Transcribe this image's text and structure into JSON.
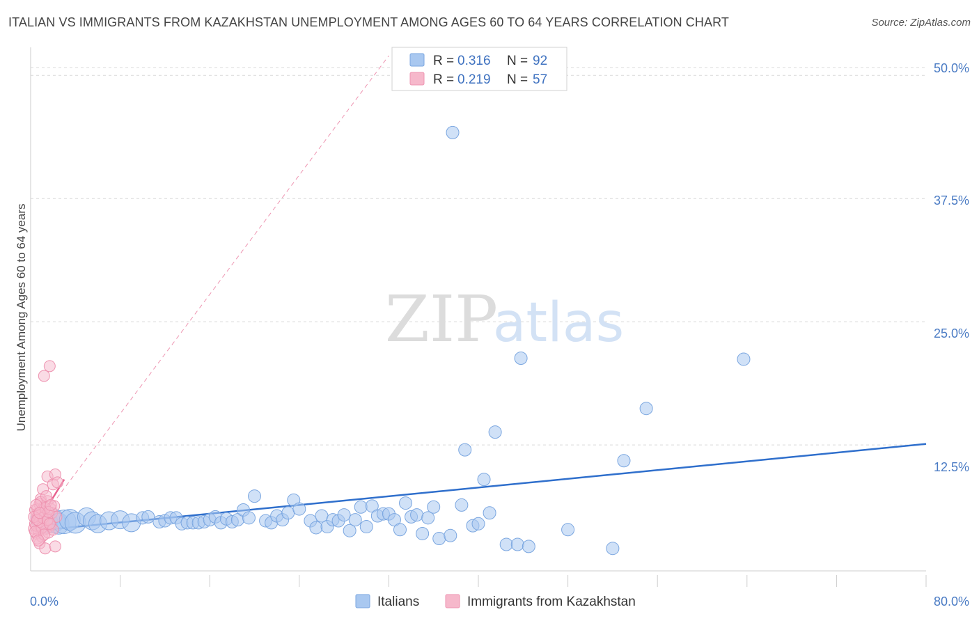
{
  "title": "ITALIAN VS IMMIGRANTS FROM KAZAKHSTAN UNEMPLOYMENT AMONG AGES 60 TO 64 YEARS CORRELATION CHART",
  "source": "Source: ZipAtlas.com",
  "watermark": {
    "zip": "ZIP",
    "atlas": "atlas"
  },
  "colors": {
    "blue_fill": "#a9c8f0",
    "blue_stroke": "#7aa6e0",
    "blue_line": "#2f6fcc",
    "pink_fill": "#f6b8cb",
    "pink_stroke": "#ee93b0",
    "pink_line": "#e8628f",
    "grid": "#d9d9d9",
    "tick_label": "#4a7bc4"
  },
  "legend": {
    "row1": {
      "r_label": "R = ",
      "r_value": "0.316",
      "n_label": "N = ",
      "n_value": "92"
    },
    "row2": {
      "r_label": "R = ",
      "r_value": "0.219",
      "n_label": "N = ",
      "n_value": "57"
    }
  },
  "chart_data": {
    "type": "scatter",
    "title": "ITALIAN VS IMMIGRANTS FROM KAZAKHSTAN UNEMPLOYMENT AMONG AGES 60 TO 64 YEARS CORRELATION CHART",
    "xlabel": "",
    "ylabel": "Unemployment Among Ages 60 to 64 years",
    "xlim": [
      0,
      80
    ],
    "ylim": [
      0,
      52
    ],
    "x_tick_labels": [
      "0.0%",
      "80.0%"
    ],
    "y_ticks": [
      12.5,
      25.0,
      37.5,
      50.0
    ],
    "y_tick_labels": [
      "12.5%",
      "25.0%",
      "37.5%",
      "50.0%"
    ],
    "grid": true,
    "legend_position": "top-center",
    "series": [
      {
        "name": "Italians",
        "color": "#a9c8f0",
        "trend": {
          "x": [
            0.5,
            80
          ],
          "y": [
            3.8,
            12.6
          ]
        },
        "points": [
          {
            "x": 1.0,
            "y": 4.9,
            "s": 3
          },
          {
            "x": 1.5,
            "y": 4.6,
            "s": 3
          },
          {
            "x": 2.0,
            "y": 4.8,
            "s": 4
          },
          {
            "x": 2.5,
            "y": 4.5,
            "s": 3
          },
          {
            "x": 3.0,
            "y": 4.7,
            "s": 4
          },
          {
            "x": 3.5,
            "y": 4.9,
            "s": 3
          },
          {
            "x": 4.0,
            "y": 4.6,
            "s": 3
          },
          {
            "x": 5.0,
            "y": 5.2,
            "s": 2
          },
          {
            "x": 5.5,
            "y": 4.8,
            "s": 2
          },
          {
            "x": 6.0,
            "y": 4.5,
            "s": 2
          },
          {
            "x": 7.0,
            "y": 4.8,
            "s": 2
          },
          {
            "x": 8.0,
            "y": 4.9,
            "s": 2
          },
          {
            "x": 9.0,
            "y": 4.6,
            "s": 2
          },
          {
            "x": 10.0,
            "y": 5.1,
            "s": 1
          },
          {
            "x": 10.5,
            "y": 5.2,
            "s": 1
          },
          {
            "x": 11.5,
            "y": 4.7,
            "s": 1
          },
          {
            "x": 12.0,
            "y": 4.8,
            "s": 1
          },
          {
            "x": 12.5,
            "y": 5.1,
            "s": 1
          },
          {
            "x": 13.0,
            "y": 5.1,
            "s": 1
          },
          {
            "x": 13.5,
            "y": 4.5,
            "s": 1
          },
          {
            "x": 14.0,
            "y": 4.6,
            "s": 1
          },
          {
            "x": 14.5,
            "y": 4.6,
            "s": 1
          },
          {
            "x": 15.0,
            "y": 4.6,
            "s": 1
          },
          {
            "x": 15.5,
            "y": 4.7,
            "s": 1
          },
          {
            "x": 16.0,
            "y": 4.9,
            "s": 1
          },
          {
            "x": 16.5,
            "y": 5.2,
            "s": 1
          },
          {
            "x": 17.0,
            "y": 4.6,
            "s": 1
          },
          {
            "x": 17.5,
            "y": 5.0,
            "s": 1
          },
          {
            "x": 18.0,
            "y": 4.7,
            "s": 1
          },
          {
            "x": 18.5,
            "y": 4.9,
            "s": 1
          },
          {
            "x": 19.0,
            "y": 5.9,
            "s": 1
          },
          {
            "x": 19.5,
            "y": 5.1,
            "s": 1
          },
          {
            "x": 20.0,
            "y": 7.3,
            "s": 1
          },
          {
            "x": 21.0,
            "y": 4.8,
            "s": 1
          },
          {
            "x": 21.5,
            "y": 4.6,
            "s": 1
          },
          {
            "x": 22.0,
            "y": 5.3,
            "s": 1
          },
          {
            "x": 22.5,
            "y": 4.9,
            "s": 1
          },
          {
            "x": 23.0,
            "y": 5.6,
            "s": 1
          },
          {
            "x": 23.5,
            "y": 6.9,
            "s": 1
          },
          {
            "x": 24.0,
            "y": 6.0,
            "s": 1
          },
          {
            "x": 25.0,
            "y": 4.8,
            "s": 1
          },
          {
            "x": 25.5,
            "y": 4.1,
            "s": 1
          },
          {
            "x": 26.0,
            "y": 5.3,
            "s": 1
          },
          {
            "x": 26.5,
            "y": 4.2,
            "s": 1
          },
          {
            "x": 27.0,
            "y": 4.9,
            "s": 1
          },
          {
            "x": 27.5,
            "y": 4.8,
            "s": 1
          },
          {
            "x": 28.0,
            "y": 5.4,
            "s": 1
          },
          {
            "x": 28.5,
            "y": 3.8,
            "s": 1
          },
          {
            "x": 29.0,
            "y": 4.9,
            "s": 1
          },
          {
            "x": 29.5,
            "y": 6.2,
            "s": 1
          },
          {
            "x": 30.0,
            "y": 4.2,
            "s": 1
          },
          {
            "x": 30.5,
            "y": 6.3,
            "s": 1
          },
          {
            "x": 31.0,
            "y": 5.3,
            "s": 1
          },
          {
            "x": 31.5,
            "y": 5.5,
            "s": 1
          },
          {
            "x": 32.0,
            "y": 5.5,
            "s": 1
          },
          {
            "x": 32.5,
            "y": 4.9,
            "s": 1
          },
          {
            "x": 33.0,
            "y": 3.9,
            "s": 1
          },
          {
            "x": 33.5,
            "y": 6.6,
            "s": 1
          },
          {
            "x": 34.0,
            "y": 5.2,
            "s": 1
          },
          {
            "x": 34.5,
            "y": 5.4,
            "s": 1
          },
          {
            "x": 35.0,
            "y": 3.5,
            "s": 1
          },
          {
            "x": 35.5,
            "y": 5.1,
            "s": 1
          },
          {
            "x": 36.0,
            "y": 6.2,
            "s": 1
          },
          {
            "x": 36.5,
            "y": 3.0,
            "s": 1
          },
          {
            "x": 37.5,
            "y": 3.3,
            "s": 1
          },
          {
            "x": 37.7,
            "y": 44.2,
            "s": 1
          },
          {
            "x": 38.5,
            "y": 6.4,
            "s": 1
          },
          {
            "x": 38.8,
            "y": 12.0,
            "s": 1
          },
          {
            "x": 39.5,
            "y": 4.3,
            "s": 1
          },
          {
            "x": 40.0,
            "y": 4.5,
            "s": 1
          },
          {
            "x": 40.5,
            "y": 9.0,
            "s": 1
          },
          {
            "x": 41.0,
            "y": 5.6,
            "s": 1
          },
          {
            "x": 41.5,
            "y": 13.8,
            "s": 1
          },
          {
            "x": 42.5,
            "y": 2.4,
            "s": 1
          },
          {
            "x": 43.5,
            "y": 2.4,
            "s": 1
          },
          {
            "x": 43.8,
            "y": 21.3,
            "s": 1
          },
          {
            "x": 44.5,
            "y": 2.2,
            "s": 1
          },
          {
            "x": 48.0,
            "y": 3.9,
            "s": 1
          },
          {
            "x": 52.0,
            "y": 2.0,
            "s": 1
          },
          {
            "x": 53.0,
            "y": 10.9,
            "s": 1
          },
          {
            "x": 55.0,
            "y": 16.2,
            "s": 1
          },
          {
            "x": 63.7,
            "y": 21.2,
            "s": 1
          }
        ]
      },
      {
        "name": "Immigrants from Kazakhstan",
        "color": "#f6b8cb",
        "trend": {
          "x": [
            0.3,
            3.0
          ],
          "y": [
            4.0,
            9.0
          ]
        },
        "trend_extended": {
          "x": [
            0.3,
            32.0
          ],
          "y": [
            4.0,
            52.0
          ]
        },
        "points": [
          {
            "x": 0.3,
            "y": 4.0,
            "s": 1
          },
          {
            "x": 0.4,
            "y": 4.5,
            "s": 1
          },
          {
            "x": 0.5,
            "y": 5.0,
            "s": 1
          },
          {
            "x": 0.5,
            "y": 3.5,
            "s": 1
          },
          {
            "x": 0.6,
            "y": 6.0,
            "s": 1
          },
          {
            "x": 0.6,
            "y": 5.5,
            "s": 1
          },
          {
            "x": 0.7,
            "y": 4.8,
            "s": 1
          },
          {
            "x": 0.7,
            "y": 3.8,
            "s": 1
          },
          {
            "x": 0.8,
            "y": 6.5,
            "s": 1
          },
          {
            "x": 0.8,
            "y": 2.5,
            "s": 1
          },
          {
            "x": 0.9,
            "y": 4.2,
            "s": 1
          },
          {
            "x": 0.9,
            "y": 7.0,
            "s": 1
          },
          {
            "x": 1.0,
            "y": 5.8,
            "s": 1
          },
          {
            "x": 1.0,
            "y": 3.2,
            "s": 1
          },
          {
            "x": 1.1,
            "y": 4.6,
            "s": 1
          },
          {
            "x": 1.1,
            "y": 8.0,
            "s": 1
          },
          {
            "x": 1.2,
            "y": 6.2,
            "s": 1
          },
          {
            "x": 1.2,
            "y": 19.5,
            "s": 1
          },
          {
            "x": 1.3,
            "y": 5.3,
            "s": 1
          },
          {
            "x": 1.3,
            "y": 2.0,
            "s": 1
          },
          {
            "x": 1.4,
            "y": 4.0,
            "s": 1
          },
          {
            "x": 1.5,
            "y": 6.8,
            "s": 1
          },
          {
            "x": 1.5,
            "y": 9.3,
            "s": 1
          },
          {
            "x": 1.6,
            "y": 5.0,
            "s": 1
          },
          {
            "x": 1.6,
            "y": 3.6,
            "s": 1
          },
          {
            "x": 1.7,
            "y": 20.5,
            "s": 1
          },
          {
            "x": 1.8,
            "y": 6.0,
            "s": 1
          },
          {
            "x": 1.8,
            "y": 4.4,
            "s": 1
          },
          {
            "x": 1.9,
            "y": 5.6,
            "s": 1
          },
          {
            "x": 2.0,
            "y": 8.5,
            "s": 1
          },
          {
            "x": 2.0,
            "y": 3.9,
            "s": 1
          },
          {
            "x": 2.1,
            "y": 6.3,
            "s": 1
          },
          {
            "x": 2.2,
            "y": 9.5,
            "s": 1
          },
          {
            "x": 2.2,
            "y": 2.2,
            "s": 1
          },
          {
            "x": 2.3,
            "y": 5.2,
            "s": 1
          },
          {
            "x": 2.4,
            "y": 8.7,
            "s": 1
          },
          {
            "x": 0.4,
            "y": 5.9,
            "s": 1
          },
          {
            "x": 0.5,
            "y": 4.3,
            "s": 1
          },
          {
            "x": 0.6,
            "y": 3.0,
            "s": 1
          },
          {
            "x": 0.7,
            "y": 5.4,
            "s": 1
          },
          {
            "x": 0.8,
            "y": 4.7,
            "s": 1
          },
          {
            "x": 0.9,
            "y": 6.7,
            "s": 1
          },
          {
            "x": 1.0,
            "y": 4.1,
            "s": 1
          },
          {
            "x": 1.1,
            "y": 5.1,
            "s": 1
          },
          {
            "x": 1.2,
            "y": 3.4,
            "s": 1
          },
          {
            "x": 1.3,
            "y": 6.1,
            "s": 1
          },
          {
            "x": 1.4,
            "y": 7.3,
            "s": 1
          },
          {
            "x": 1.5,
            "y": 4.9,
            "s": 1
          },
          {
            "x": 1.6,
            "y": 5.7,
            "s": 1
          },
          {
            "x": 1.7,
            "y": 4.5,
            "s": 1
          },
          {
            "x": 1.8,
            "y": 6.4,
            "s": 1
          },
          {
            "x": 0.3,
            "y": 5.2,
            "s": 1
          },
          {
            "x": 0.4,
            "y": 3.7,
            "s": 1
          },
          {
            "x": 0.5,
            "y": 6.4,
            "s": 1
          },
          {
            "x": 0.6,
            "y": 4.9,
            "s": 1
          },
          {
            "x": 0.7,
            "y": 2.8,
            "s": 1
          },
          {
            "x": 0.8,
            "y": 5.6,
            "s": 1
          }
        ]
      }
    ]
  }
}
